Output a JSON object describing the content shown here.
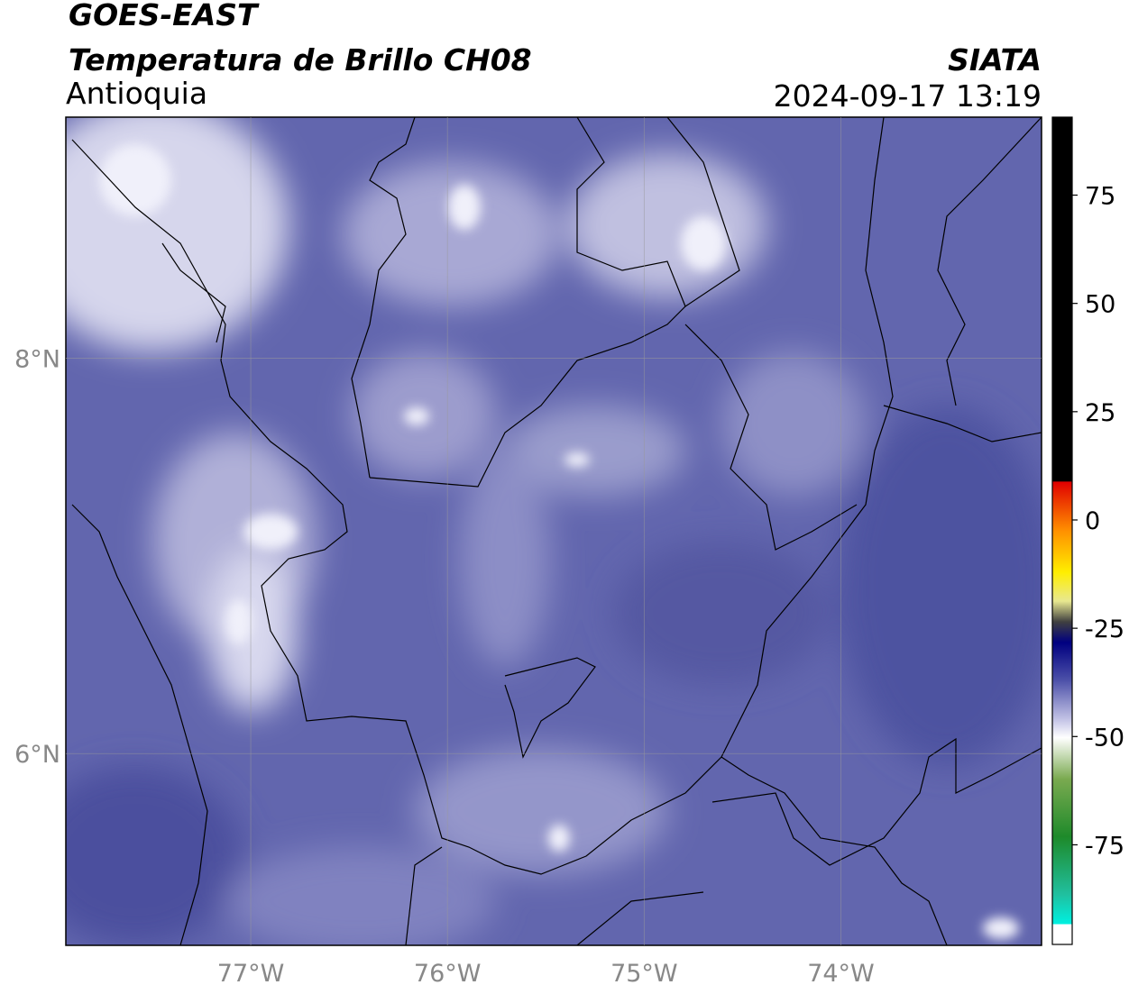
{
  "header": {
    "title": "GOES-EAST",
    "subtitle": "Temperatura de Brillo CH08",
    "source": "SIATA",
    "region": "Antioquia",
    "timestamp": "2024-09-17 13:19"
  },
  "map": {
    "xlim": [
      -77.94,
      -72.98
    ],
    "ylim": [
      5.03,
      9.22
    ],
    "xticks": [
      {
        "value": -77,
        "label": "77°W"
      },
      {
        "value": -76,
        "label": "76°W"
      },
      {
        "value": -75,
        "label": "75°W"
      },
      {
        "value": -74,
        "label": "74°W"
      }
    ],
    "yticks": [
      {
        "value": 8,
        "label": "8°N"
      },
      {
        "value": 6,
        "label": "6°N"
      }
    ],
    "grid": true
  },
  "colorbar": {
    "lim": [
      -98,
      93
    ],
    "ticks": [
      75,
      50,
      25,
      0,
      -25,
      -50,
      -75
    ]
  }
}
